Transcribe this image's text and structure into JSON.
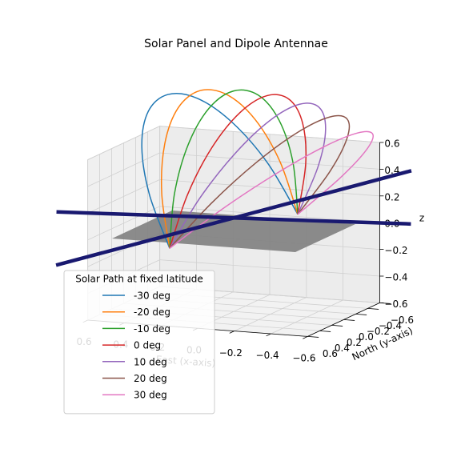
{
  "chart_data": {
    "type": "line3d",
    "title": "Solar Panel and Dipole Antennae",
    "xlabel": "East (x-axis)",
    "ylabel": "North (y-axis)",
    "zlabel": "z",
    "xlim": [
      -0.6,
      0.6
    ],
    "ylim": [
      -0.6,
      0.6
    ],
    "zlim": [
      -0.6,
      0.6
    ],
    "xticks": [
      0.6,
      0.4,
      0.2,
      {
        "value": 0,
        "label": "0.0"
      },
      {
        "value": -0.2,
        "label": "−0.2"
      },
      {
        "value": -0.4,
        "label": "−0.4"
      },
      {
        "value": -0.6,
        "label": "−0.6"
      }
    ],
    "yticks": [
      0.6,
      0.4,
      0.2,
      {
        "value": 0,
        "label": "0.0"
      },
      {
        "value": -0.2,
        "label": "−0.2"
      },
      {
        "value": -0.4,
        "label": "−0.4"
      },
      {
        "value": -0.6,
        "label": "−0.6"
      }
    ],
    "zticks": [
      0.6,
      0.4,
      0.2,
      {
        "value": 0,
        "label": "0.0"
      },
      {
        "value": -0.2,
        "label": "−0.2"
      },
      {
        "value": -0.4,
        "label": "−0.4"
      },
      {
        "value": -0.6,
        "label": "−0.6"
      }
    ],
    "grid": true,
    "legend_title": "Solar Path at fixed latitude",
    "legend_position": "lower left",
    "solar_panel": {
      "color": "#808080",
      "x": [
        0.5,
        0.5,
        -0.5,
        -0.5
      ],
      "y": [
        0.5,
        -0.5,
        -0.5,
        0.5
      ],
      "z": [
        0,
        0,
        0,
        0
      ]
    },
    "antennae": [
      {
        "color": "#191970",
        "x": [
          0.895,
          -0.895
        ],
        "y": [
          0.22,
          -0.22
        ],
        "z": [
          0.1,
          0.1
        ]
      },
      {
        "color": "#191970",
        "x": [
          0.36,
          -0.36
        ],
        "y": [
          1.86,
          -1.86
        ],
        "z": [
          0.1,
          0.1
        ]
      }
    ],
    "series": [
      {
        "name": "-30 deg",
        "color": "#1f77b4",
        "x": [
          0.13,
          0.257,
          0.346,
          0.382,
          0.359,
          0.282,
          0.162,
          0.017,
          -0.13
        ],
        "y": [
          0.67,
          0.619,
          0.474,
          0.257,
          0,
          -0.257,
          -0.474,
          -0.619,
          -0.67
        ],
        "z": [
          0,
          0.378,
          0.697,
          0.912,
          0.987,
          0.912,
          0.697,
          0.378,
          0
        ]
      },
      {
        "name": "-20 deg",
        "color": "#ff7f0e",
        "x": [
          0.13,
          0.19,
          0.221,
          0.219,
          0.183,
          0.119,
          0.037,
          -0.05,
          -0.13
        ],
        "y": [
          0.67,
          0.619,
          0.474,
          0.257,
          0,
          -0.257,
          -0.474,
          -0.619,
          -0.67
        ],
        "z": [
          0,
          0.396,
          0.731,
          0.955,
          1.034,
          0.955,
          0.731,
          0.396,
          0
        ]
      },
      {
        "name": "-10 deg",
        "color": "#2ca02c",
        "x": [
          0.13,
          0.12,
          0.092,
          0.05,
          0,
          -0.05,
          -0.092,
          -0.12,
          -0.13
        ],
        "y": [
          0.67,
          0.619,
          0.474,
          0.257,
          0,
          -0.257,
          -0.474,
          -0.619,
          -0.67
        ],
        "z": [
          0,
          0.402,
          0.742,
          0.97,
          1.05,
          0.97,
          0.742,
          0.402,
          0
        ]
      },
      {
        "name": "0 deg",
        "color": "#d62728",
        "x": [
          0.13,
          0.05,
          -0.037,
          -0.119,
          -0.183,
          -0.219,
          -0.221,
          -0.19,
          -0.13
        ],
        "y": [
          0.67,
          0.619,
          0.474,
          0.257,
          0,
          -0.257,
          -0.474,
          -0.619,
          -0.67
        ],
        "z": [
          0,
          0.396,
          0.731,
          0.955,
          1.034,
          0.955,
          0.731,
          0.396,
          0
        ]
      },
      {
        "name": "10 deg",
        "color": "#9467bd",
        "x": [
          0.13,
          -0.017,
          -0.162,
          -0.282,
          -0.359,
          -0.382,
          -0.346,
          -0.257,
          -0.13
        ],
        "y": [
          0.67,
          0.619,
          0.474,
          0.257,
          0,
          -0.257,
          -0.474,
          -0.619,
          -0.67
        ],
        "z": [
          0,
          0.378,
          0.697,
          0.912,
          0.987,
          0.912,
          0.697,
          0.378,
          0
        ]
      },
      {
        "name": "20 deg",
        "color": "#8c564b",
        "x": [
          0.13,
          -0.081,
          -0.279,
          -0.435,
          -0.525,
          -0.535,
          -0.463,
          -0.321,
          -0.13
        ],
        "y": [
          0.67,
          0.619,
          0.474,
          0.257,
          0,
          -0.257,
          -0.474,
          -0.619,
          -0.67
        ],
        "z": [
          0,
          0.348,
          0.643,
          0.84,
          0.909,
          0.84,
          0.643,
          0.348,
          0
        ]
      },
      {
        "name": "30 deg",
        "color": "#e377c2",
        "x": [
          0.13,
          -0.138,
          -0.385,
          -0.574,
          -0.675,
          -0.674,
          -0.569,
          -0.378,
          -0.13
        ],
        "y": [
          0.67,
          0.619,
          0.474,
          0.257,
          0,
          -0.257,
          -0.474,
          -0.619,
          -0.67
        ],
        "z": [
          0,
          0.308,
          0.568,
          0.743,
          0.804,
          0.743,
          0.568,
          0.308,
          0
        ]
      }
    ]
  }
}
